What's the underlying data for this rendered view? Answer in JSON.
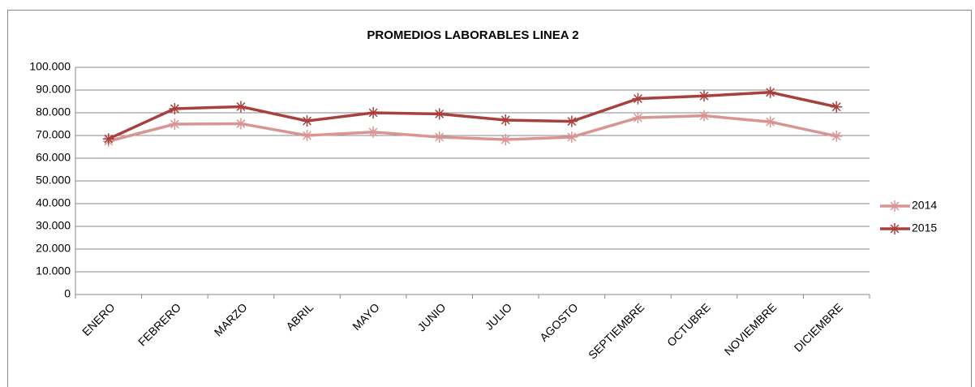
{
  "chart_data": {
    "type": "line",
    "title": "PROMEDIOS LABORABLES LINEA 2",
    "categories": [
      "ENERO",
      "FEBRERO",
      "MARZO",
      "ABRIL",
      "MAYO",
      "JUNIO",
      "JULIO",
      "AGOSTO",
      "SEPTIEMBRE",
      "OCTUBRE",
      "NOVIEMBRE",
      "DICIEMBRE"
    ],
    "series": [
      {
        "name": "2014",
        "color": "#d99594",
        "values": [
          67500,
          75000,
          75200,
          70000,
          71500,
          69300,
          68200,
          69300,
          77800,
          78700,
          76000,
          69700
        ]
      },
      {
        "name": "2015",
        "color": "#a8403e",
        "values": [
          68500,
          81800,
          82700,
          76400,
          80000,
          79500,
          76800,
          76200,
          86200,
          87400,
          89000,
          82600
        ]
      }
    ],
    "ylim": [
      0,
      100000
    ],
    "yticks": [
      0,
      {
        "value": 10000,
        "label": "10.000"
      },
      {
        "value": 20000,
        "label": "20.000"
      },
      {
        "value": 30000,
        "label": "30.000"
      },
      {
        "value": 40000,
        "label": "40.000"
      },
      {
        "value": 50000,
        "label": "50.000"
      },
      {
        "value": 60000,
        "label": "60.000"
      },
      {
        "value": 70000,
        "label": "70.000"
      },
      {
        "value": 80000,
        "label": "80.000"
      },
      {
        "value": 90000,
        "label": "90.000"
      },
      {
        "value": 100000,
        "label": "100.000"
      }
    ],
    "grid": true,
    "legend": "right"
  }
}
